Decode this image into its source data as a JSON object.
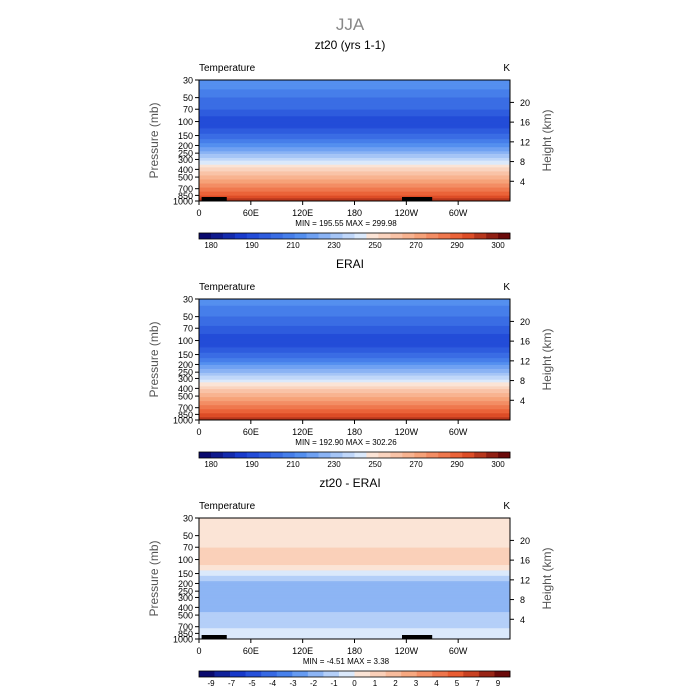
{
  "chart_data": {
    "type": "heatmap",
    "title": "JJA",
    "x_tick_labels": [
      "0",
      "60E",
      "120E",
      "180",
      "120W",
      "60W"
    ],
    "x_tick_lons": [
      0,
      60,
      120,
      180,
      240,
      300
    ],
    "xlim": [
      0,
      360
    ],
    "pressure_ticks": [
      30,
      50,
      70,
      100,
      150,
      200,
      250,
      300,
      400,
      500,
      700,
      850,
      1000
    ],
    "pressure_tick_labels": [
      "30",
      "50",
      "70",
      "100",
      "150",
      "200",
      "250",
      "300",
      "400",
      "500",
      "700",
      "850",
      "1000"
    ],
    "height_ticks": [
      4,
      8,
      12,
      16,
      20
    ],
    "height_tick_labels": [
      "4",
      "8",
      "12",
      "16",
      "20"
    ],
    "ylim_pressure": [
      1000,
      30
    ],
    "ylabel_left": "Pressure (mb)",
    "ylabel_right": "Height (km)",
    "panels": [
      {
        "name": "top",
        "title": "zt20 (yrs 1-1)",
        "variable": "Temperature",
        "units": "K",
        "stats": "MIN =  195.55   MAX =  299.98",
        "min": 195.55,
        "max": 299.98,
        "levels": [
          175,
          180,
          185,
          190,
          195,
          200,
          205,
          210,
          215,
          220,
          225,
          230,
          235,
          240,
          245,
          250,
          255,
          260,
          265,
          270,
          275,
          280,
          285,
          290,
          295,
          300,
          305
        ],
        "colorbar_labels": [
          "180",
          "190",
          "210",
          "230",
          "250",
          "270",
          "290",
          "300"
        ],
        "profile_pressure": [
          30,
          40,
          50,
          60,
          70,
          85,
          100,
          120,
          150,
          175,
          200,
          250,
          300,
          350,
          400,
          450,
          500,
          600,
          700,
          775,
          850,
          925,
          1000
        ],
        "profile_values": [
          218,
          215,
          210,
          207,
          205,
          200,
          196,
          200,
          207,
          212,
          218,
          228,
          238,
          246,
          253,
          258,
          262,
          270,
          277,
          281,
          285,
          289,
          293
        ]
      },
      {
        "name": "middle",
        "title": "ERAI",
        "variable": "Temperature",
        "units": "K",
        "stats": "MIN =  192.90   MAX =  302.26",
        "min": 192.9,
        "max": 302.26,
        "levels": [
          175,
          180,
          185,
          190,
          195,
          200,
          205,
          210,
          215,
          220,
          225,
          230,
          235,
          240,
          245,
          250,
          255,
          260,
          265,
          270,
          275,
          280,
          285,
          290,
          295,
          300,
          305
        ],
        "colorbar_labels": [
          "180",
          "190",
          "210",
          "230",
          "250",
          "270",
          "290",
          "300"
        ],
        "profile_pressure": [
          30,
          40,
          50,
          60,
          70,
          85,
          100,
          120,
          150,
          175,
          200,
          250,
          300,
          350,
          400,
          450,
          500,
          600,
          700,
          775,
          850,
          925,
          1000
        ],
        "profile_values": [
          217,
          214,
          210,
          206,
          204,
          199,
          195,
          199,
          207,
          212,
          219,
          229,
          239,
          247,
          254,
          259,
          263,
          271,
          278,
          282,
          286,
          290,
          294
        ]
      },
      {
        "name": "bottom",
        "title": "zt20 - ERAI",
        "variable": "Temperature",
        "units": "K",
        "stats": "MIN =   -4.51   MAX =    3.38",
        "min": -4.51,
        "max": 3.38,
        "levels": [
          -10,
          -9,
          -8,
          -7,
          -6,
          -5,
          -4,
          -3,
          -2,
          -1,
          0,
          1,
          2,
          3,
          4,
          5,
          6,
          7,
          8,
          9,
          10
        ],
        "colorbar_labels": [
          "-9",
          "-7",
          "-5",
          "-4",
          "-3",
          "-2",
          "-1",
          "0",
          "1",
          "2",
          "3",
          "4",
          "5",
          "7",
          "9"
        ],
        "profile_pressure": [
          30,
          40,
          50,
          60,
          70,
          85,
          100,
          120,
          150,
          175,
          200,
          250,
          300,
          350,
          400,
          450,
          500,
          600,
          700,
          775,
          850,
          925,
          1000
        ],
        "profile_values": [
          0.5,
          0.6,
          0.6,
          0.8,
          1.0,
          1.6,
          2.0,
          0.8,
          -0.6,
          -1.6,
          -2.4,
          -2.6,
          -2.8,
          -2.4,
          -2.2,
          -2.0,
          -1.6,
          -1.3,
          -1.1,
          -0.8,
          -0.6,
          -0.4,
          -0.3
        ]
      }
    ]
  },
  "colors": {
    "background": "#ffffff",
    "axis": "#000000",
    "title": "#888888"
  }
}
